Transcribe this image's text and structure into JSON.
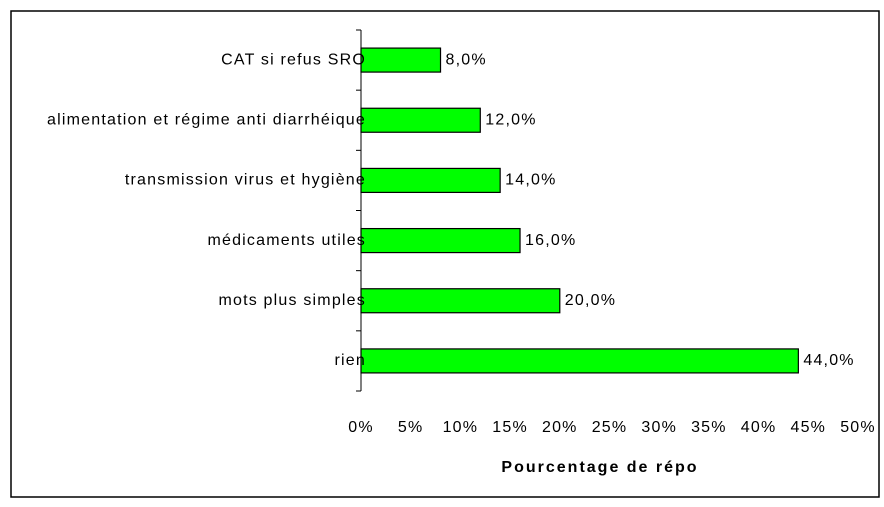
{
  "chart_data": {
    "type": "barh",
    "categories": [
      "CAT si refus SRO",
      "alimentation et régime anti diarrhéique",
      "transmission virus et hygiène",
      "médicaments utiles",
      "mots plus simples",
      "rien"
    ],
    "values": [
      8,
      12,
      14,
      16,
      20,
      44
    ],
    "value_labels": [
      "8,0%",
      "12,0%",
      "14,0%",
      "16,0%",
      "20,0%",
      "44,0%"
    ],
    "color": "#00ff00",
    "xlabel": "Pourcentage de répo",
    "xlim": [
      0,
      50
    ],
    "xticks": [
      {
        "value": 0,
        "label": "0%"
      },
      {
        "value": 5,
        "label": "5%"
      },
      {
        "value": 10,
        "label": "10%"
      },
      {
        "value": 15,
        "label": "15%"
      },
      {
        "value": 20,
        "label": "20%"
      },
      {
        "value": 25,
        "label": "25%"
      },
      {
        "value": 30,
        "label": "30%"
      },
      {
        "value": 35,
        "label": "35%"
      },
      {
        "value": 40,
        "label": "40%"
      },
      {
        "value": 45,
        "label": "45%"
      },
      {
        "value": 50,
        "label": "50%"
      }
    ],
    "grid": false
  }
}
